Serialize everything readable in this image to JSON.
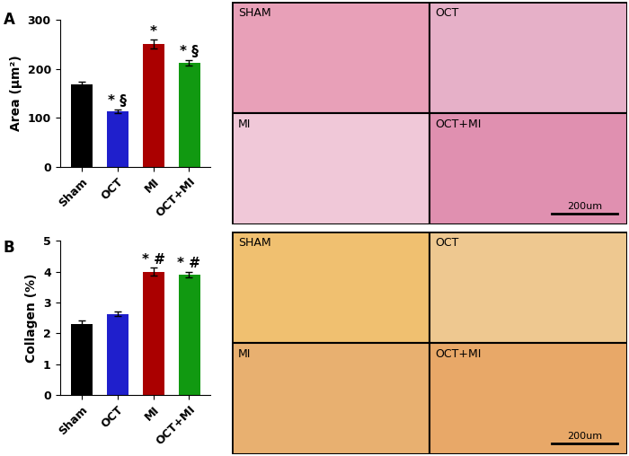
{
  "chart_data": [
    {
      "type": "bar",
      "panel": "A",
      "y_label": "Area (μm²)",
      "categories": [
        "Sham",
        "OCT",
        "MI",
        "OCT+MI"
      ],
      "values": [
        168,
        113,
        250,
        212
      ],
      "errors": [
        6,
        4,
        9,
        6
      ],
      "annotations": [
        null,
        "* §",
        "*",
        "* §"
      ],
      "colors": [
        "#000000",
        "#1f1fcc",
        "#aa0000",
        "#119911"
      ],
      "ylim": [
        0,
        300
      ],
      "yticks": [
        0,
        100,
        200,
        300
      ]
    },
    {
      "type": "bar",
      "panel": "B",
      "y_label": "Collagen (%)",
      "categories": [
        "Sham",
        "OCT",
        "MI",
        "OCT+MI"
      ],
      "values": [
        2.3,
        2.63,
        4.0,
        3.9
      ],
      "errors": [
        0.12,
        0.08,
        0.12,
        0.1
      ],
      "annotations": [
        null,
        null,
        "* #",
        "* #"
      ],
      "colors": [
        "#000000",
        "#1f1fcc",
        "#aa0000",
        "#119911"
      ],
      "ylim": [
        0,
        5
      ],
      "yticks": [
        0,
        1,
        2,
        3,
        4,
        5
      ]
    }
  ],
  "image_panels": [
    {
      "labels": [
        "SHAM",
        "OCT",
        "MI",
        "OCT+MI"
      ],
      "scale_bar": "200um"
    },
    {
      "labels": [
        "SHAM",
        "OCT",
        "MI",
        "OCT+MI"
      ],
      "scale_bar": "200um"
    }
  ]
}
